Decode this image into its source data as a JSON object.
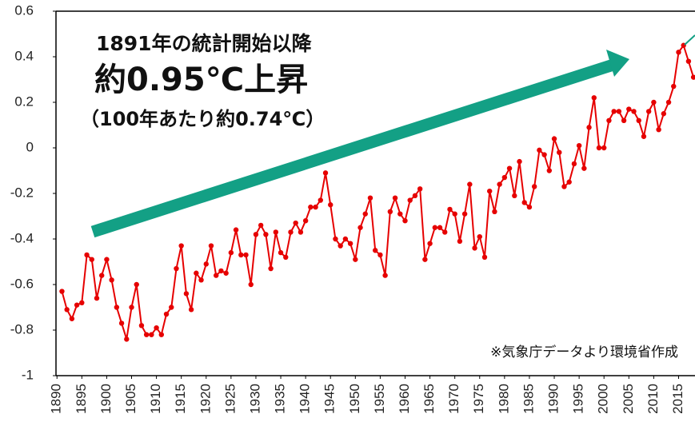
{
  "chart_data": {
    "type": "line",
    "annotations": [
      "1891年の統計開始以降",
      "約0.95℃上昇",
      "（100年あたり約0.74℃）",
      "※気象庁データより環境省作成"
    ],
    "x": [
      1891,
      1892,
      1893,
      1894,
      1895,
      1896,
      1897,
      1898,
      1899,
      1900,
      1901,
      1902,
      1903,
      1904,
      1905,
      1906,
      1907,
      1908,
      1909,
      1910,
      1911,
      1912,
      1913,
      1914,
      1915,
      1916,
      1917,
      1918,
      1919,
      1920,
      1921,
      1922,
      1923,
      1924,
      1925,
      1926,
      1927,
      1928,
      1929,
      1930,
      1931,
      1932,
      1933,
      1934,
      1935,
      1936,
      1937,
      1938,
      1939,
      1940,
      1941,
      1942,
      1943,
      1944,
      1945,
      1946,
      1947,
      1948,
      1949,
      1950,
      1951,
      1952,
      1953,
      1954,
      1955,
      1956,
      1957,
      1958,
      1959,
      1960,
      1961,
      1962,
      1963,
      1964,
      1965,
      1966,
      1967,
      1968,
      1969,
      1970,
      1971,
      1972,
      1973,
      1974,
      1975,
      1976,
      1977,
      1978,
      1979,
      1980,
      1981,
      1982,
      1983,
      1984,
      1985,
      1986,
      1987,
      1988,
      1989,
      1990,
      1991,
      1992,
      1993,
      1994,
      1995,
      1996,
      1997,
      1998,
      1999,
      2000,
      2001,
      2002,
      2003,
      2004,
      2005,
      2006,
      2007,
      2008,
      2009,
      2010,
      2011,
      2012,
      2013,
      2014,
      2015,
      2016,
      2017,
      2018
    ],
    "series": [
      {
        "color": "#e60000",
        "values": [
          -0.63,
          -0.71,
          -0.75,
          -0.69,
          -0.68,
          -0.47,
          -0.49,
          -0.66,
          -0.56,
          -0.49,
          -0.58,
          -0.7,
          -0.77,
          -0.84,
          -0.7,
          -0.6,
          -0.78,
          -0.82,
          -0.82,
          -0.79,
          -0.82,
          -0.73,
          -0.7,
          -0.53,
          -0.43,
          -0.64,
          -0.71,
          -0.55,
          -0.58,
          -0.51,
          -0.43,
          -0.56,
          -0.54,
          -0.55,
          -0.46,
          -0.36,
          -0.47,
          -0.47,
          -0.6,
          -0.38,
          -0.34,
          -0.38,
          -0.53,
          -0.37,
          -0.46,
          -0.48,
          -0.37,
          -0.33,
          -0.37,
          -0.32,
          -0.26,
          -0.26,
          -0.23,
          -0.11,
          -0.25,
          -0.4,
          -0.43,
          -0.4,
          -0.42,
          -0.49,
          -0.35,
          -0.29,
          -0.22,
          -0.45,
          -0.47,
          -0.56,
          -0.28,
          -0.22,
          -0.29,
          -0.32,
          -0.23,
          -0.21,
          -0.18,
          -0.49,
          -0.42,
          -0.35,
          -0.35,
          -0.37,
          -0.27,
          -0.29,
          -0.41,
          -0.29,
          -0.16,
          -0.44,
          -0.39,
          -0.48,
          -0.19,
          -0.28,
          -0.16,
          -0.13,
          -0.09,
          -0.21,
          -0.06,
          -0.24,
          -0.26,
          -0.17,
          -0.01,
          -0.03,
          -0.1,
          0.04,
          -0.02,
          -0.17,
          -0.15,
          -0.07,
          0.01,
          -0.09,
          0.09,
          0.22,
          0.0,
          0.0,
          0.12,
          0.16,
          0.16,
          0.12,
          0.17,
          0.16,
          0.12,
          0.05,
          0.16,
          0.2,
          0.08,
          0.15,
          0.2,
          0.27,
          0.42,
          0.45,
          0.38,
          0.31
        ]
      }
    ],
    "xlim": [
      1889.8,
      2018.3
    ],
    "xticks": [
      1890,
      1895,
      1900,
      1905,
      1910,
      1915,
      1920,
      1925,
      1930,
      1935,
      1940,
      1945,
      1950,
      1955,
      1960,
      1965,
      1970,
      1975,
      1980,
      1985,
      1990,
      1995,
      2000,
      2005,
      2010,
      2015
    ],
    "ylim": [
      -1,
      0.6
    ],
    "yticks": [
      -1,
      -0.8,
      -0.6,
      -0.4,
      -0.2,
      0,
      0.2,
      0.4,
      0.6
    ]
  }
}
